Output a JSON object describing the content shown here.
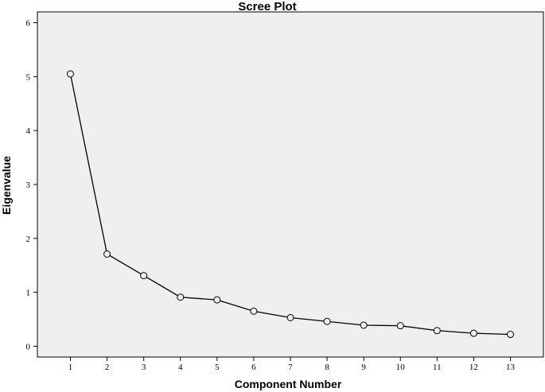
{
  "chart_data": {
    "type": "line",
    "title": "Scree Plot",
    "xlabel": "Component Number",
    "ylabel": "Eigenvalue",
    "x": [
      1,
      2,
      3,
      4,
      5,
      6,
      7,
      8,
      9,
      10,
      11,
      12,
      13
    ],
    "x_tick_labels": [
      "1",
      "2",
      "3",
      "4",
      "5",
      "6",
      "7",
      "8",
      "9",
      "10",
      "11",
      "12",
      "13"
    ],
    "y_tick_labels": [
      "0",
      "1",
      "2",
      "3",
      "4",
      "5",
      "6"
    ],
    "y_ticks": [
      0,
      1,
      2,
      3,
      4,
      5,
      6
    ],
    "ylim": [
      -0.2,
      6.2
    ],
    "xlim": [
      0.1,
      13.9
    ],
    "series": [
      {
        "values": [
          5.05,
          1.71,
          1.31,
          0.91,
          0.86,
          0.65,
          0.53,
          0.46,
          0.39,
          0.38,
          0.29,
          0.24,
          0.22
        ]
      }
    ],
    "grid": false,
    "legend": "none",
    "colors": {
      "plot_background": "#efefef",
      "line": "#000000",
      "marker_fill": "#efefef"
    }
  }
}
